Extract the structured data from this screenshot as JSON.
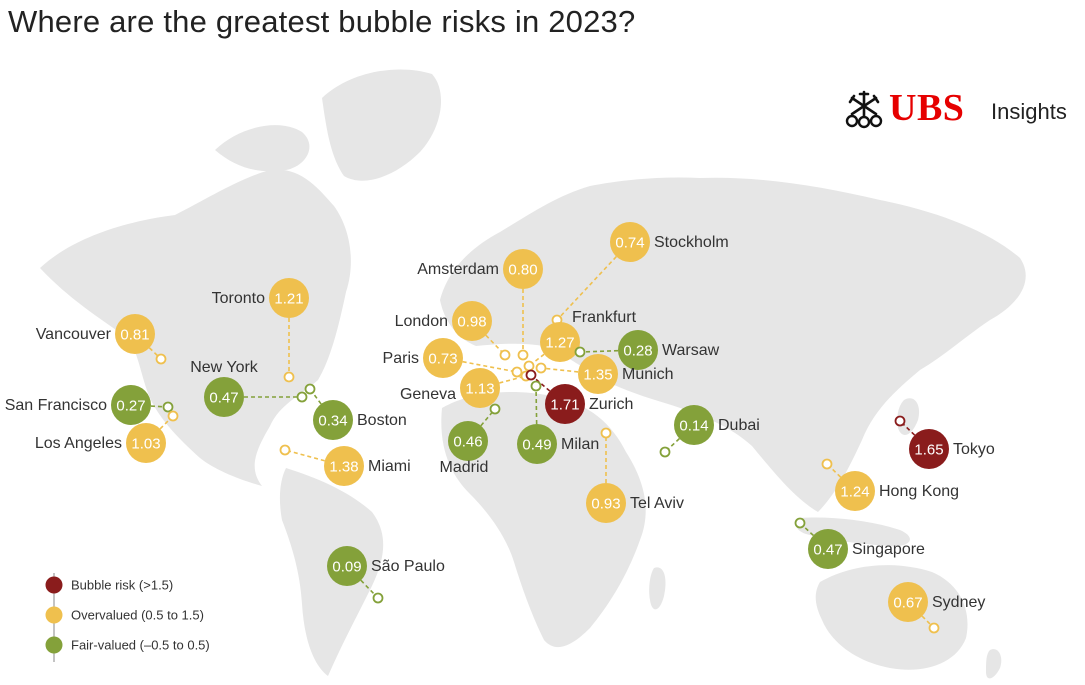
{
  "title": "Where are the greatest bubble risks in 2023?",
  "brand": {
    "name": "UBS",
    "tagline": "Insights",
    "color": "#e60000"
  },
  "colors": {
    "bubble": "#8a1c1c",
    "overvalued": "#efc04e",
    "fair": "#84a13a",
    "land": "#e6e6e6",
    "connector_overvalued": "#efc04e",
    "connector_fair": "#84a13a",
    "connector_bubble": "#8a1c1c"
  },
  "legend": [
    {
      "category": "bubble",
      "label": "Bubble risk (>1.5)"
    },
    {
      "category": "overvalued",
      "label": "Overvalued (0.5 to 1.5)"
    },
    {
      "category": "fair",
      "label": "Fair-valued (–0.5 to 0.5)"
    }
  ],
  "cities": [
    {
      "name": "Vancouver",
      "score": "0.81",
      "category": "overvalued",
      "label_side": "left"
    },
    {
      "name": "Toronto",
      "score": "1.21",
      "category": "overvalued",
      "label_side": "left"
    },
    {
      "name": "San Francisco",
      "score": "0.27",
      "category": "fair",
      "label_side": "left"
    },
    {
      "name": "Los Angeles",
      "score": "1.03",
      "category": "overvalued",
      "label_side": "left"
    },
    {
      "name": "New York",
      "score": "0.47",
      "category": "fair",
      "label_side": "above"
    },
    {
      "name": "Boston",
      "score": "0.34",
      "category": "fair",
      "label_side": "right"
    },
    {
      "name": "Miami",
      "score": "1.38",
      "category": "overvalued",
      "label_side": "right"
    },
    {
      "name": "São Paulo",
      "score": "0.09",
      "category": "fair",
      "label_side": "right"
    },
    {
      "name": "Amsterdam",
      "score": "0.80",
      "category": "overvalued",
      "label_side": "left"
    },
    {
      "name": "Stockholm",
      "score": "0.74",
      "category": "overvalued",
      "label_side": "right"
    },
    {
      "name": "London",
      "score": "0.98",
      "category": "overvalued",
      "label_side": "left"
    },
    {
      "name": "Frankfurt",
      "score": "1.27",
      "category": "overvalued",
      "label_side": "above"
    },
    {
      "name": "Paris",
      "score": "0.73",
      "category": "overvalued",
      "label_side": "left"
    },
    {
      "name": "Warsaw",
      "score": "0.28",
      "category": "fair",
      "label_side": "right"
    },
    {
      "name": "Munich",
      "score": "1.35",
      "category": "overvalued",
      "label_side": "right"
    },
    {
      "name": "Geneva",
      "score": "1.13",
      "category": "overvalued",
      "label_side": "left"
    },
    {
      "name": "Zurich",
      "score": "1.71",
      "category": "bubble",
      "label_side": "right"
    },
    {
      "name": "Madrid",
      "score": "0.46",
      "category": "fair",
      "label_side": "below"
    },
    {
      "name": "Milan",
      "score": "0.49",
      "category": "fair",
      "label_side": "right"
    },
    {
      "name": "Tel Aviv",
      "score": "0.93",
      "category": "overvalued",
      "label_side": "right"
    },
    {
      "name": "Dubai",
      "score": "0.14",
      "category": "fair",
      "label_side": "right"
    },
    {
      "name": "Tokyo",
      "score": "1.65",
      "category": "bubble",
      "label_side": "right"
    },
    {
      "name": "Hong Kong",
      "score": "1.24",
      "category": "overvalued",
      "label_side": "right"
    },
    {
      "name": "Singapore",
      "score": "0.47",
      "category": "fair",
      "label_side": "right"
    },
    {
      "name": "Sydney",
      "score": "0.67",
      "category": "overvalued",
      "label_side": "right"
    }
  ]
}
